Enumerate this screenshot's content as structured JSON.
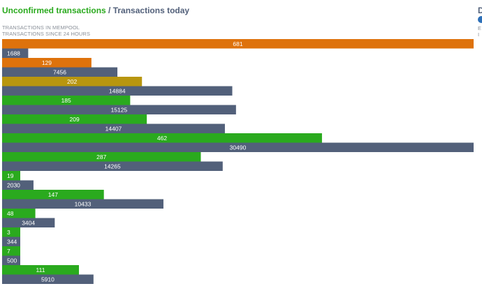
{
  "header": {
    "title_part1": "Unconfirmed transactions",
    "title_sep": " / ",
    "title_part2": "Transactions today",
    "subtitle1": "TRANSACTIONS IN MEMPOOL",
    "subtitle2": "TRANSACTIONS SINCE 24 HOURS",
    "edge_d": "D",
    "edge_e": "E",
    "edge_i": "I"
  },
  "colors": {
    "green": "#2aaa1e",
    "slate": "#52607a",
    "orange": "#de720c",
    "olive": "#b8960f"
  },
  "chart_data": {
    "type": "bar",
    "orientation": "horizontal",
    "groups": [
      {
        "unconfirmed": 681,
        "today": 1688,
        "unconfirmed_color": "#de720c"
      },
      {
        "unconfirmed": 129,
        "today": 7456,
        "unconfirmed_color": "#de720c"
      },
      {
        "unconfirmed": 202,
        "today": 14884,
        "unconfirmed_color": "#b8960f"
      },
      {
        "unconfirmed": 185,
        "today": 15125,
        "unconfirmed_color": "#2aaa1e"
      },
      {
        "unconfirmed": 209,
        "today": 14407,
        "unconfirmed_color": "#2aaa1e"
      },
      {
        "unconfirmed": 462,
        "today": 30490,
        "unconfirmed_color": "#2aaa1e"
      },
      {
        "unconfirmed": 287,
        "today": 14265,
        "unconfirmed_color": "#2aaa1e"
      },
      {
        "unconfirmed": 19,
        "today": 2030,
        "unconfirmed_color": "#2aaa1e"
      },
      {
        "unconfirmed": 147,
        "today": 10433,
        "unconfirmed_color": "#2aaa1e"
      },
      {
        "unconfirmed": 48,
        "today": 3404,
        "unconfirmed_color": "#2aaa1e"
      },
      {
        "unconfirmed": 3,
        "today": 344,
        "unconfirmed_color": "#2aaa1e"
      },
      {
        "unconfirmed": 7,
        "today": 500,
        "unconfirmed_color": "#2aaa1e"
      },
      {
        "unconfirmed": 111,
        "today": 5910,
        "unconfirmed_color": "#2aaa1e"
      }
    ],
    "unconfirmed_scale_max": 681,
    "today_scale_max": 30490,
    "today_color": "#52607a",
    "grid": false,
    "legend": "none"
  }
}
